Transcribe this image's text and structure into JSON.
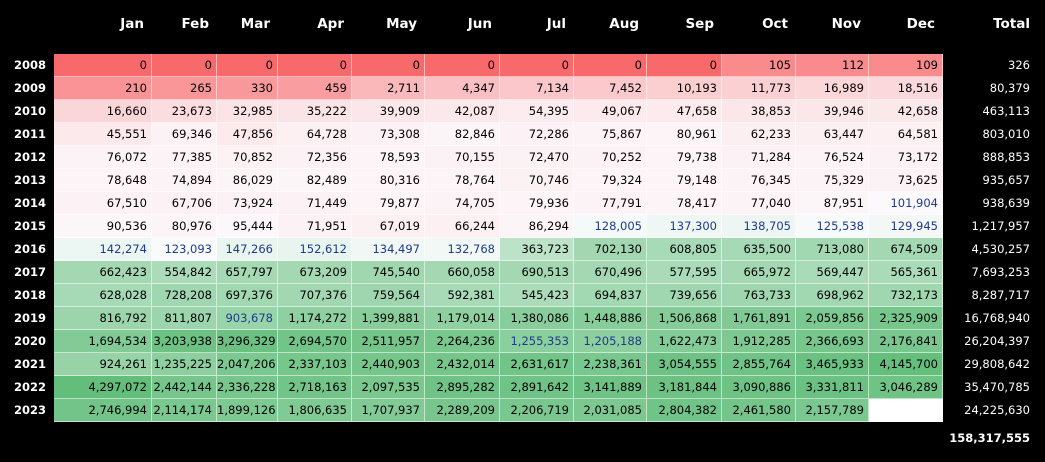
{
  "months": [
    "Jan",
    "Feb",
    "Mar",
    "Apr",
    "May",
    "Jun",
    "Jul",
    "Aug",
    "Sep",
    "Oct",
    "Nov",
    "Dec"
  ],
  "total_label": "Total",
  "grand_total": "158,317,555",
  "rows": [
    {
      "year": "2008",
      "total": "326",
      "values": [
        "0",
        "0",
        "0",
        "0",
        "0",
        "0",
        "0",
        "0",
        "0",
        "105",
        "112",
        "109"
      ]
    },
    {
      "year": "2009",
      "total": "80,379",
      "values": [
        "210",
        "265",
        "330",
        "459",
        "2,711",
        "4,347",
        "7,134",
        "7,452",
        "10,193",
        "11,773",
        "16,989",
        "18,516"
      ]
    },
    {
      "year": "2010",
      "total": "463,113",
      "values": [
        "16,660",
        "23,673",
        "32,985",
        "35,222",
        "39,909",
        "42,087",
        "54,395",
        "49,067",
        "47,658",
        "38,853",
        "39,946",
        "42,658"
      ]
    },
    {
      "year": "2011",
      "total": "803,010",
      "values": [
        "45,551",
        "69,346",
        "47,856",
        "64,728",
        "73,308",
        "82,846",
        "72,286",
        "75,867",
        "80,961",
        "62,233",
        "63,447",
        "64,581"
      ]
    },
    {
      "year": "2012",
      "total": "888,853",
      "values": [
        "76,072",
        "77,385",
        "70,852",
        "72,356",
        "78,593",
        "70,155",
        "72,470",
        "70,252",
        "79,738",
        "71,284",
        "76,524",
        "73,172"
      ]
    },
    {
      "year": "2013",
      "total": "935,657",
      "values": [
        "78,648",
        "74,894",
        "86,029",
        "82,489",
        "80,316",
        "78,764",
        "70,746",
        "79,324",
        "79,148",
        "76,345",
        "75,329",
        "73,625"
      ]
    },
    {
      "year": "2014",
      "total": "938,639",
      "values": [
        "67,510",
        "67,706",
        "73,924",
        "71,449",
        "79,877",
        "74,705",
        "79,936",
        "77,791",
        "78,417",
        "77,040",
        "87,951",
        "101,904"
      ]
    },
    {
      "year": "2015",
      "total": "1,217,957",
      "values": [
        "90,536",
        "80,976",
        "95,444",
        "71,951",
        "67,019",
        "66,244",
        "86,294",
        "128,005",
        "137,300",
        "138,705",
        "125,538",
        "129,945"
      ]
    },
    {
      "year": "2016",
      "total": "4,530,257",
      "values": [
        "142,274",
        "123,093",
        "147,266",
        "152,612",
        "134,497",
        "132,768",
        "363,723",
        "702,130",
        "608,805",
        "635,500",
        "713,080",
        "674,509"
      ]
    },
    {
      "year": "2017",
      "total": "7,693,253",
      "values": [
        "662,423",
        "554,842",
        "657,797",
        "673,209",
        "745,540",
        "660,058",
        "690,513",
        "670,496",
        "577,595",
        "665,972",
        "569,447",
        "565,361"
      ]
    },
    {
      "year": "2018",
      "total": "8,287,717",
      "values": [
        "628,028",
        "728,208",
        "697,376",
        "707,376",
        "759,564",
        "592,381",
        "545,423",
        "694,837",
        "739,656",
        "763,733",
        "698,962",
        "732,173"
      ]
    },
    {
      "year": "2019",
      "total": "16,768,940",
      "values": [
        "816,792",
        "811,807",
        "903,678",
        "1,174,272",
        "1,399,881",
        "1,179,014",
        "1,380,086",
        "1,448,886",
        "1,506,868",
        "1,761,891",
        "2,059,856",
        "2,325,909"
      ]
    },
    {
      "year": "2020",
      "total": "26,204,397",
      "values": [
        "1,694,534",
        "3,203,938",
        "3,296,329",
        "2,694,570",
        "2,511,957",
        "2,264,236",
        "1,255,353",
        "1,205,188",
        "1,622,473",
        "1,912,285",
        "2,366,693",
        "2,176,841"
      ]
    },
    {
      "year": "2021",
      "total": "29,808,642",
      "values": [
        "924,261",
        "1,235,225",
        "2,047,206",
        "2,337,103",
        "2,440,903",
        "2,432,014",
        "2,631,617",
        "2,238,361",
        "3,054,555",
        "2,855,764",
        "3,465,933",
        "4,145,700"
      ]
    },
    {
      "year": "2022",
      "total": "35,470,785",
      "values": [
        "4,297,072",
        "2,442,144",
        "2,336,228",
        "2,718,163",
        "2,097,535",
        "2,895,282",
        "2,891,642",
        "3,141,889",
        "3,181,844",
        "3,090,886",
        "3,331,811",
        "3,046,289"
      ]
    },
    {
      "year": "2023",
      "total": "24,225,630",
      "values": [
        "2,746,994",
        "2,114,174",
        "1,899,126",
        "1,806,635",
        "1,707,937",
        "2,289,209",
        "2,206,719",
        "2,031,085",
        "2,804,382",
        "2,461,580",
        "2,157,789",
        ""
      ]
    }
  ],
  "colors": {
    "low": "#f8696b",
    "mid": "#fcfcff",
    "high": "#63be7b",
    "blue_text": "#1f3a8a",
    "background": "#000000"
  }
}
